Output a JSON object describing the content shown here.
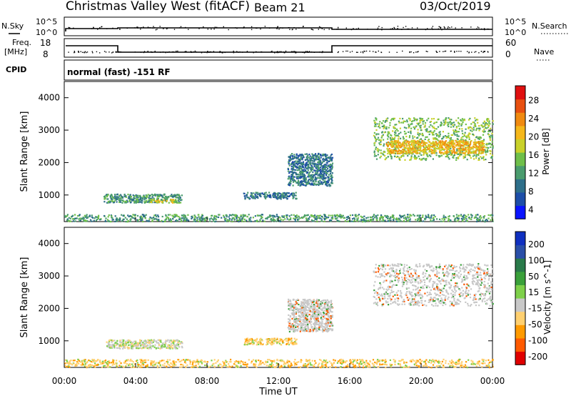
{
  "header": {
    "station": "Christmas Valley West (fitACF)",
    "beam": "Beam 21",
    "date": "03/Oct/2019"
  },
  "top_panels": {
    "nsky_label": "N.Sky",
    "nsky_ticks": [
      "10^5",
      "10^0"
    ],
    "nsearch_label": "N.Search",
    "nsearch_ticks": [
      "10^5",
      "10^0"
    ],
    "freq_label_1": "Freq.",
    "freq_label_2": "[MHz]",
    "freq_ticks": [
      "18",
      "8"
    ],
    "nave_label": "Nave",
    "nave_ticks": [
      "60",
      "0"
    ],
    "cpid_label": "CPID",
    "cpid_text": "normal (fast) -151 RF"
  },
  "colors": {
    "power_scale": [
      "#0a14ff",
      "#1d4ea8",
      "#2e6f8a",
      "#4a9c6e",
      "#6fbf4a",
      "#c9d12a",
      "#f5b71a",
      "#f08a10",
      "#e85010",
      "#e01010"
    ],
    "velocity_scale": [
      "#e00000",
      "#ff5a00",
      "#ff9a00",
      "#ffd070",
      "#c8c8c8",
      "#7ed04a",
      "#3aa03a",
      "#2a7a4a",
      "#2a4fa8",
      "#1030c0"
    ]
  },
  "chart_data": [
    {
      "type": "heatmap",
      "panel": "power",
      "ylabel": "Slant Range [km]",
      "yticks": [
        "4000",
        "3000",
        "2000",
        "1000"
      ],
      "ylim": [
        180,
        4500
      ],
      "colorbar_label": "Power [dB]",
      "colorbar_ticks": [
        "28",
        "24",
        "20",
        "16",
        "12",
        "8",
        "4"
      ],
      "scatter_regions": [
        {
          "t0": 2.2,
          "t1": 6.6,
          "r0": 780,
          "r1": 1050,
          "level": 3
        },
        {
          "t0": 4.8,
          "t1": 6.2,
          "r0": 780,
          "r1": 880,
          "level": 5
        },
        {
          "t0": 12.5,
          "t1": 15.0,
          "r0": 1300,
          "r1": 2300,
          "level": 2
        },
        {
          "t0": 10.0,
          "t1": 13.0,
          "r0": 900,
          "r1": 1100,
          "level": 2
        },
        {
          "t0": 17.3,
          "t1": 24.0,
          "r0": 2100,
          "r1": 3400,
          "level": 4
        },
        {
          "t0": 18.0,
          "t1": 23.5,
          "r0": 2300,
          "r1": 2700,
          "level": 6
        },
        {
          "t0": 0.0,
          "t1": 24.0,
          "r0": 200,
          "r1": 420,
          "level": 3
        }
      ]
    },
    {
      "type": "heatmap",
      "panel": "velocity",
      "ylabel": "Slant Range [km]",
      "yticks": [
        "4000",
        "3000",
        "2000",
        "1000"
      ],
      "ylim": [
        180,
        4500
      ],
      "colorbar_label": "Velocity [m s^-1]",
      "colorbar_ticks": [
        "200",
        "100",
        "50",
        "15",
        "-15",
        "-50",
        "-100",
        "-200"
      ],
      "xlabel": "Time UT",
      "xticks": [
        "00:00",
        "04:00",
        "08:00",
        "12:00",
        "16:00",
        "20:00",
        "00:00"
      ],
      "xlim": [
        0,
        24
      ],
      "scatter_regions": [
        {
          "t0": 2.3,
          "t1": 6.6,
          "r0": 780,
          "r1": 1050,
          "vel": "mixed"
        },
        {
          "t0": 10.0,
          "t1": 13.0,
          "r0": 900,
          "r1": 1100,
          "vel": "neg"
        },
        {
          "t0": 12.5,
          "t1": 15.0,
          "r0": 1300,
          "r1": 2300,
          "vel": "low"
        },
        {
          "t0": 17.3,
          "t1": 24.0,
          "r0": 2100,
          "r1": 3400,
          "vel": "low"
        },
        {
          "t0": 0.0,
          "t1": 24.0,
          "r0": 200,
          "r1": 450,
          "vel": "neg"
        }
      ]
    }
  ],
  "xaxis": {
    "label": "Time UT",
    "ticks": [
      "00:00",
      "04:00",
      "08:00",
      "12:00",
      "16:00",
      "20:00",
      "00:00"
    ]
  }
}
